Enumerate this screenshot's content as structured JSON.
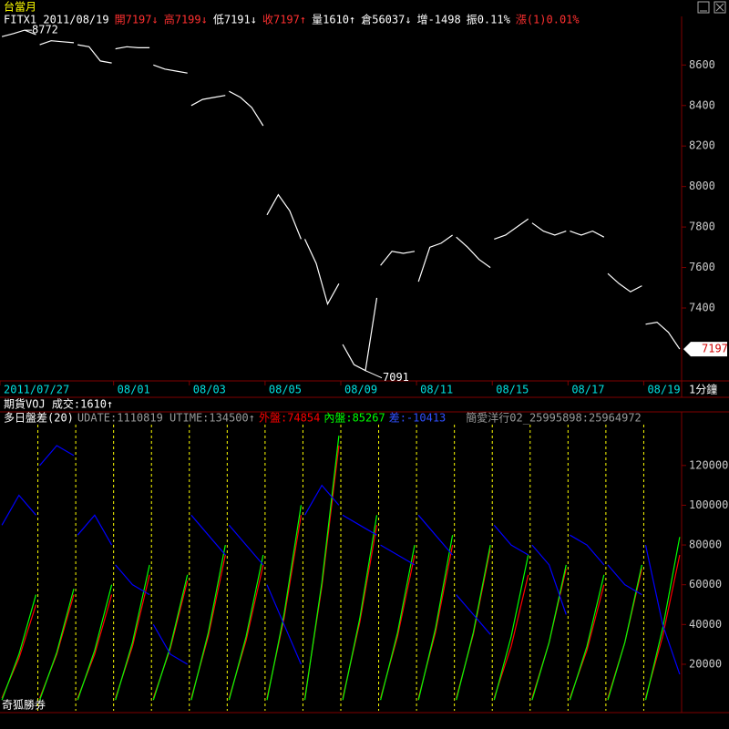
{
  "header": {
    "symbol": "台當月",
    "quote": [
      {
        "text": "FITX1 2011/08/19",
        "color": "#ffffff"
      },
      {
        "text": "開7197↓",
        "color": "#ff3030"
      },
      {
        "text": "高7199↓",
        "color": "#ff3030"
      },
      {
        "text": "低7191↓",
        "color": "#ffffff"
      },
      {
        "text": "收7197↑",
        "color": "#ff3030"
      },
      {
        "text": "量1610↑",
        "color": "#ffffff"
      },
      {
        "text": "倉56037↓",
        "color": "#ffffff"
      },
      {
        "text": "增-1498",
        "color": "#ffffff"
      },
      {
        "text": "振0.11%",
        "color": "#ffffff"
      },
      {
        "text": "漲(1)0.01%",
        "color": "#ff3030"
      }
    ],
    "interval": "1分鐘",
    "volume_line": "期貨VOJ 成交:1610↑",
    "footer": "奇狐勝券"
  },
  "chart_data": [
    {
      "type": "line",
      "color": "#ffffff",
      "high": 8772,
      "low": 7091,
      "last": 7197,
      "xlim": [
        0,
        18
      ],
      "ylim": [
        7040,
        8840
      ],
      "xticks": [
        {
          "value": 0,
          "label": "2011/07/27"
        },
        {
          "value": 3,
          "label": "08/01"
        },
        {
          "value": 5,
          "label": "08/03"
        },
        {
          "value": 7,
          "label": "08/05"
        },
        {
          "value": 9,
          "label": "08/09"
        },
        {
          "value": 11,
          "label": "08/11"
        },
        {
          "value": 13,
          "label": "08/15"
        },
        {
          "value": 15,
          "label": "08/17"
        },
        {
          "value": 17,
          "label": "08/19"
        }
      ],
      "yticks": [
        7400,
        7600,
        7800,
        8000,
        8200,
        8400,
        8600
      ],
      "x": [
        0.05,
        0.35,
        0.65,
        0.95,
        null,
        1.05,
        1.35,
        1.65,
        1.95,
        null,
        2.05,
        2.35,
        2.65,
        2.95,
        null,
        3.05,
        3.35,
        3.65,
        3.95,
        null,
        4.05,
        4.35,
        4.65,
        4.95,
        null,
        5.05,
        5.35,
        5.65,
        5.95,
        null,
        6.05,
        6.35,
        6.65,
        6.95,
        null,
        7.05,
        7.35,
        7.65,
        7.95,
        null,
        8.05,
        8.35,
        8.65,
        8.95,
        null,
        9.05,
        9.35,
        9.65,
        9.95,
        null,
        10.05,
        10.35,
        10.65,
        10.95,
        null,
        11.05,
        11.35,
        11.65,
        11.95,
        null,
        12.05,
        12.35,
        12.65,
        12.95,
        null,
        13.05,
        13.35,
        13.65,
        13.95,
        null,
        14.05,
        14.35,
        14.65,
        14.95,
        null,
        15.05,
        15.35,
        15.65,
        15.95,
        null,
        16.05,
        16.35,
        16.65,
        16.95,
        null,
        17.05,
        17.35,
        17.65,
        17.95,
        null
      ],
      "values": [
        8740,
        8755,
        8772,
        8750,
        null,
        8700,
        8720,
        8715,
        8710,
        null,
        8700,
        8690,
        8620,
        8610,
        null,
        8680,
        8690,
        8685,
        8685,
        null,
        8600,
        8580,
        8570,
        8560,
        null,
        8400,
        8430,
        8440,
        8450,
        null,
        8470,
        8440,
        8390,
        8300,
        null,
        7860,
        7960,
        7880,
        7740,
        null,
        7740,
        7620,
        7420,
        7520,
        null,
        7220,
        7120,
        7091,
        7450,
        null,
        7610,
        7680,
        7670,
        7680,
        null,
        7530,
        7700,
        7720,
        7760,
        null,
        7750,
        7700,
        7640,
        7600,
        null,
        7740,
        7760,
        7800,
        7840,
        null,
        7820,
        7780,
        7760,
        7780,
        null,
        7780,
        7760,
        7780,
        7750,
        null,
        7570,
        7520,
        7480,
        7510,
        null,
        7320,
        7330,
        7280,
        7197,
        null
      ]
    },
    {
      "type": "line",
      "title": "多日盤差(20)",
      "subtitle": "UDATE:1110819 UTIME:134500↑",
      "note": "簡愛洋行02_25995898:25964972",
      "xlim": [
        0,
        18
      ],
      "ylim": [
        -3400,
        141000
      ],
      "yticks": [
        20000,
        40000,
        60000,
        80000,
        100000,
        120000
      ],
      "xticks": [
        1,
        2,
        3,
        4,
        5,
        6,
        7,
        8,
        9,
        10,
        11,
        12,
        13,
        14,
        15,
        16,
        17
      ],
      "x": [
        0.05,
        0.5,
        0.95,
        null,
        1.05,
        1.5,
        1.95,
        null,
        2.05,
        2.5,
        2.95,
        null,
        3.05,
        3.5,
        3.95,
        null,
        4.05,
        4.5,
        4.95,
        null,
        5.05,
        5.5,
        5.95,
        null,
        6.05,
        6.5,
        6.95,
        null,
        7.05,
        7.5,
        7.95,
        null,
        8.05,
        8.5,
        8.95,
        null,
        9.05,
        9.5,
        9.95,
        null,
        10.05,
        10.5,
        10.95,
        null,
        11.05,
        11.5,
        11.95,
        null,
        12.05,
        12.5,
        12.95,
        null,
        13.05,
        13.5,
        13.95,
        null,
        14.05,
        14.5,
        14.95,
        null,
        15.05,
        15.5,
        15.95,
        null,
        16.05,
        16.5,
        16.95,
        null,
        17.05,
        17.5,
        17.95,
        null
      ],
      "series": [
        {
          "name": "外盤:74854",
          "color": "#ff0000",
          "values": [
            3000,
            23000,
            50000,
            null,
            3000,
            25000,
            55000,
            null,
            3000,
            25000,
            55000,
            null,
            3000,
            29000,
            65000,
            null,
            3000,
            28000,
            62000,
            null,
            3000,
            34000,
            75000,
            null,
            3000,
            32000,
            70000,
            null,
            3000,
            43000,
            95000,
            null,
            3000,
            59000,
            130000,
            null,
            3000,
            41000,
            90000,
            null,
            3000,
            34000,
            75000,
            null,
            3000,
            36000,
            80000,
            null,
            3000,
            35000,
            78000,
            null,
            3000,
            29000,
            65000,
            null,
            3000,
            31000,
            68000,
            null,
            3000,
            27000,
            60000,
            null,
            3000,
            31000,
            68000,
            null,
            3000,
            34000,
            75000,
            null
          ]
        },
        {
          "name": "內盤:85267",
          "color": "#00ff00",
          "values": [
            2000,
            25000,
            55000,
            null,
            2000,
            26000,
            58000,
            null,
            2000,
            27000,
            60000,
            null,
            2000,
            31000,
            70000,
            null,
            2000,
            29000,
            65000,
            null,
            2000,
            36000,
            80000,
            null,
            2000,
            34000,
            75000,
            null,
            2000,
            45000,
            100000,
            null,
            2000,
            61000,
            135000,
            null,
            2000,
            43000,
            95000,
            null,
            2000,
            36000,
            80000,
            null,
            2000,
            38000,
            85000,
            null,
            2000,
            36000,
            80000,
            null,
            2000,
            34000,
            75000,
            null,
            2000,
            31000,
            70000,
            null,
            2000,
            29000,
            65000,
            null,
            2000,
            31000,
            70000,
            null,
            2000,
            38000,
            84000,
            null
          ]
        },
        {
          "name": "差:-10413",
          "color": "#0000ff",
          "values": [
            90000,
            105000,
            95000,
            null,
            120000,
            130000,
            125000,
            null,
            85000,
            95000,
            80000,
            null,
            70000,
            60000,
            55000,
            null,
            40000,
            25000,
            20000,
            null,
            95000,
            85000,
            75000,
            null,
            90000,
            80000,
            70000,
            null,
            60000,
            40000,
            20000,
            null,
            95000,
            110000,
            100000,
            null,
            95000,
            90000,
            85000,
            null,
            80000,
            75000,
            70000,
            null,
            95000,
            85000,
            75000,
            null,
            55000,
            45000,
            35000,
            null,
            90000,
            80000,
            75000,
            null,
            80000,
            70000,
            45000,
            null,
            85000,
            80000,
            70000,
            null,
            70000,
            60000,
            55000,
            null,
            80000,
            40000,
            15000,
            null
          ]
        }
      ]
    }
  ]
}
